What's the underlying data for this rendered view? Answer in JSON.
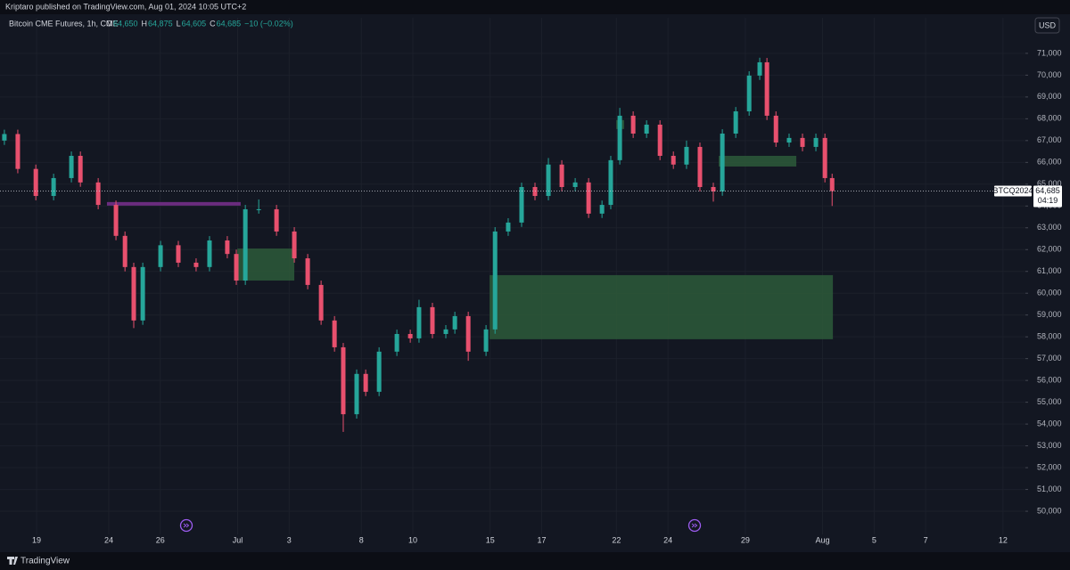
{
  "chart_data": {
    "type": "candlestick",
    "header": "Kriptaro published on TradingView.com, Aug 01, 2024 10:05 UTC+2",
    "legend": {
      "title": "Bitcoin CME Futures, 1h, CME",
      "items": [
        {
          "key": "O",
          "value": "64,650"
        },
        {
          "key": "H",
          "value": "64,875"
        },
        {
          "key": "L",
          "value": "64,605"
        },
        {
          "key": "C",
          "value": "64,685"
        }
      ],
      "change": "−10 (−0.02%)"
    },
    "currency": "USD",
    "brand": "TradingView",
    "symbol": "BTCQ2024",
    "last_price": {
      "value": 64685,
      "label": "64,685"
    },
    "countdown": "04:19",
    "up_color": "#26a69a",
    "down_color": "#e8506e",
    "grid": true,
    "xlim": [
      -1.42,
      38.37
    ],
    "ylim": [
      48940,
      72630
    ],
    "xticks": [
      {
        "value": 0,
        "label": "19"
      },
      {
        "value": 2.8,
        "label": "24"
      },
      {
        "value": 4.8,
        "label": "26"
      },
      {
        "value": 7.8,
        "label": "Jul"
      },
      {
        "value": 9.8,
        "label": "3"
      },
      {
        "value": 12.6,
        "label": "8"
      },
      {
        "value": 14.6,
        "label": "10"
      },
      {
        "value": 17.6,
        "label": "15"
      },
      {
        "value": 19.6,
        "label": "17"
      },
      {
        "value": 22.5,
        "label": "22"
      },
      {
        "value": 24.5,
        "label": "24"
      },
      {
        "value": 27.5,
        "label": "29"
      },
      {
        "value": 30.5,
        "label": "Aug"
      },
      {
        "value": 32.5,
        "label": "5"
      },
      {
        "value": 34.5,
        "label": "7"
      },
      {
        "value": 37.5,
        "label": "12"
      }
    ],
    "yticks": [
      {
        "value": 50000,
        "label": "50,000"
      },
      {
        "value": 51000,
        "label": "51,000"
      },
      {
        "value": 52000,
        "label": "52,000"
      },
      {
        "value": 53000,
        "label": "53,000"
      },
      {
        "value": 54000,
        "label": "54,000"
      },
      {
        "value": 55000,
        "label": "55,000"
      },
      {
        "value": 56000,
        "label": "56,000"
      },
      {
        "value": 57000,
        "label": "57,000"
      },
      {
        "value": 58000,
        "label": "58,000"
      },
      {
        "value": 59000,
        "label": "59,000"
      },
      {
        "value": 60000,
        "label": "60,000"
      },
      {
        "value": 61000,
        "label": "61,000"
      },
      {
        "value": 62000,
        "label": "62,000"
      },
      {
        "value": 63000,
        "label": "63,000"
      },
      {
        "value": 64000,
        "label": "64,000"
      },
      {
        "value": 65000,
        "label": "65,000"
      },
      {
        "value": 66000,
        "label": "66,000"
      },
      {
        "value": 67000,
        "label": "67,000"
      },
      {
        "value": 68000,
        "label": "68,000"
      },
      {
        "value": 69000,
        "label": "69,000"
      },
      {
        "value": 70000,
        "label": "70,000"
      },
      {
        "value": 71000,
        "label": "71,000"
      }
    ],
    "x": [
      -1.25,
      -0.73,
      -0.03,
      0.66,
      1.35,
      1.7,
      2.39,
      3.08,
      3.43,
      3.77,
      4.12,
      4.81,
      5.5,
      6.19,
      6.71,
      7.4,
      7.75,
      8.1,
      8.62,
      9.31,
      10.0,
      10.52,
      11.04,
      11.56,
      11.9,
      12.42,
      12.77,
      13.29,
      13.98,
      14.5,
      14.84,
      15.36,
      15.88,
      16.23,
      16.75,
      17.44,
      17.79,
      18.3,
      18.82,
      19.34,
      19.86,
      20.38,
      20.9,
      21.42,
      21.94,
      22.28,
      22.63,
      23.15,
      23.67,
      24.19,
      24.71,
      25.22,
      25.74,
      26.26,
      26.61,
      27.13,
      27.65,
      28.06,
      28.34,
      28.69,
      29.2,
      29.72,
      30.24,
      30.59,
      30.87
    ],
    "open": [
      67000,
      67300,
      65700,
      64460,
      65280,
      66300,
      65080,
      64050,
      62630,
      61200,
      58750,
      61200,
      62200,
      61400,
      61200,
      62420,
      61800,
      60580,
      63850,
      63850,
      62830,
      61600,
      60380,
      58750,
      57520,
      54450,
      56300,
      55480,
      57320,
      58130,
      57930,
      59360,
      58130,
      58340,
      58950,
      57320,
      58340,
      62830,
      63240,
      64870,
      64460,
      65900,
      64870,
      65080,
      63650,
      64050,
      66100,
      68140,
      67320,
      67730,
      66300,
      65900,
      66710,
      64870,
      64670,
      67320,
      68340,
      69980,
      70590,
      68140,
      66910,
      67120,
      66710,
      67120,
      65280
    ],
    "high": [
      67500,
      67500,
      65900,
      65480,
      66500,
      66500,
      65280,
      64250,
      62830,
      61400,
      61400,
      62400,
      62400,
      61600,
      62620,
      62620,
      62000,
      64050,
      64300,
      64050,
      63030,
      61800,
      60580,
      58950,
      57720,
      56500,
      56500,
      57520,
      58330,
      58330,
      59700,
      59560,
      58540,
      59150,
      59150,
      58540,
      63030,
      63440,
      65070,
      65070,
      66200,
      66100,
      65280,
      65280,
      64250,
      66300,
      68500,
      68340,
      67930,
      67930,
      66500,
      67000,
      66910,
      65070,
      67520,
      68540,
      70180,
      70800,
      70790,
      68340,
      67320,
      67320,
      67320,
      67320,
      65480
    ],
    "low": [
      66800,
      65500,
      64260,
      64260,
      65080,
      64880,
      63850,
      62430,
      61000,
      58400,
      58550,
      61000,
      61200,
      61000,
      61000,
      61600,
      60380,
      60380,
      63650,
      62630,
      61400,
      60180,
      58550,
      57320,
      53640,
      54250,
      55280,
      55280,
      57120,
      57730,
      57730,
      57930,
      57930,
      58140,
      56900,
      57120,
      58140,
      62630,
      63040,
      64260,
      64260,
      64670,
      64670,
      63450,
      63450,
      63850,
      65900,
      67120,
      67120,
      66100,
      65700,
      65700,
      64670,
      64200,
      64470,
      67120,
      68140,
      69780,
      67940,
      66710,
      66710,
      66510,
      66510,
      65080,
      64000
    ],
    "close": [
      67300,
      65700,
      64460,
      65280,
      66300,
      65080,
      64050,
      62630,
      61200,
      58750,
      61200,
      62200,
      61400,
      61200,
      62420,
      61800,
      60580,
      63850,
      63850,
      62830,
      61600,
      60380,
      58750,
      57520,
      54450,
      56300,
      55480,
      57320,
      58130,
      57930,
      59360,
      58130,
      58340,
      58950,
      57320,
      58340,
      62830,
      63240,
      64870,
      64460,
      65900,
      64870,
      65080,
      63650,
      64050,
      66100,
      68140,
      67320,
      67730,
      66300,
      65900,
      66710,
      64870,
      64670,
      67320,
      68340,
      69980,
      70590,
      68140,
      66910,
      67120,
      66710,
      67120,
      65280,
      64685
    ],
    "zones": [
      {
        "x": [
          17.58,
          30.9
        ],
        "y": [
          57890,
          60830
        ],
        "color": "#2d5a3a"
      },
      {
        "x": [
          7.79,
          10.0
        ],
        "y": [
          60580,
          62050
        ],
        "color": "#2d5a3a"
      },
      {
        "x": [
          26.47,
          29.48
        ],
        "y": [
          65810,
          66300
        ],
        "color": "#2d5a3a"
      },
      {
        "x": [
          22.49,
          22.8
        ],
        "y": [
          67530,
          67940
        ],
        "color": "#2d5a3a"
      }
    ],
    "lines": [
      {
        "x": [
          2.73,
          7.92
        ],
        "y": 64100,
        "color": "#6a2c7e"
      }
    ]
  }
}
